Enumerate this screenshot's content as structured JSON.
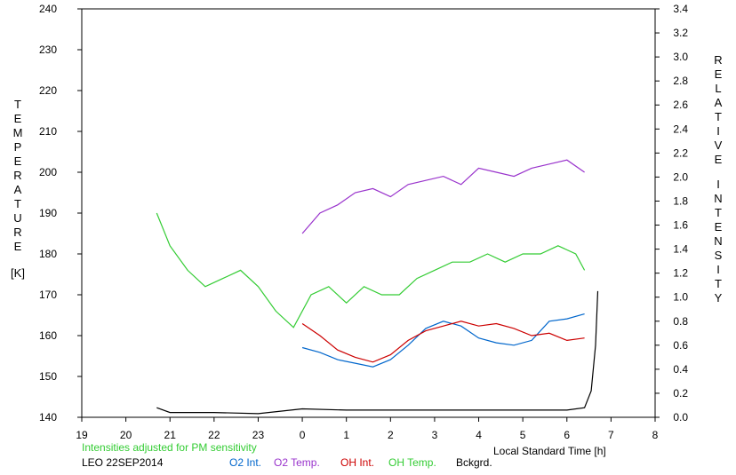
{
  "chart_data": {
    "type": "line",
    "left_axis": {
      "label_letters": [
        "T",
        "E",
        "M",
        "P",
        "E",
        "R",
        "A",
        "T",
        "U",
        "R",
        "E"
      ],
      "unit": "[K]",
      "ticks": [
        140,
        150,
        160,
        170,
        180,
        190,
        200,
        210,
        220,
        230,
        240
      ],
      "range": [
        140,
        240
      ]
    },
    "right_axis": {
      "word1": [
        "R",
        "E",
        "L",
        "A",
        "T",
        "I",
        "V",
        "E"
      ],
      "word2": [
        "I",
        "N",
        "T",
        "E",
        "N",
        "S",
        "I",
        "T",
        "Y"
      ],
      "ticks": [
        "0.0",
        "0.2",
        "0.4",
        "0.6",
        "0.8",
        "1.0",
        "1.2",
        "1.4",
        "1.6",
        "1.8",
        "2.0",
        "2.2",
        "2.4",
        "2.6",
        "2.8",
        "3.0",
        "3.2",
        "3.4"
      ],
      "range": [
        0,
        3.4
      ]
    },
    "x_axis": {
      "label": "Local Standard Time [h]",
      "tick_labels": [
        "19",
        "20",
        "21",
        "22",
        "23",
        "0",
        "1",
        "2",
        "3",
        "4",
        "5",
        "6",
        "7",
        "8"
      ],
      "range": [
        19,
        32
      ]
    },
    "note": "Intensities adjusted for PM sensitivity",
    "station": "LEO 22SEP2014",
    "series": [
      {
        "name": "O2 Int.",
        "axis": "right",
        "color": "#0066cc",
        "x": [
          24.0,
          24.4,
          24.8,
          25.2,
          25.6,
          26.0,
          26.4,
          26.8,
          27.2,
          27.6,
          28.0,
          28.4,
          28.8,
          29.2,
          29.6,
          30.0,
          30.4
        ],
        "y": [
          0.58,
          0.54,
          0.48,
          0.45,
          0.42,
          0.48,
          0.6,
          0.74,
          0.8,
          0.76,
          0.66,
          0.62,
          0.6,
          0.64,
          0.8,
          0.82,
          0.86
        ]
      },
      {
        "name": "O2 Temp.",
        "axis": "left",
        "color": "#9933cc",
        "x": [
          24.0,
          24.4,
          24.8,
          25.2,
          25.6,
          26.0,
          26.4,
          26.8,
          27.2,
          27.6,
          28.0,
          28.4,
          28.8,
          29.2,
          29.6,
          30.0,
          30.4
        ],
        "y": [
          185,
          190,
          192,
          195,
          196,
          194,
          197,
          198,
          199,
          197,
          201,
          200,
          199,
          201,
          202,
          203,
          200
        ]
      },
      {
        "name": "OH Int.",
        "axis": "right",
        "color": "#cc0000",
        "x": [
          24.0,
          24.4,
          24.8,
          25.2,
          25.6,
          26.0,
          26.4,
          26.8,
          27.2,
          27.6,
          28.0,
          28.4,
          28.8,
          29.2,
          29.6,
          30.0,
          30.4
        ],
        "y": [
          0.78,
          0.68,
          0.56,
          0.5,
          0.46,
          0.52,
          0.64,
          0.72,
          0.76,
          0.8,
          0.76,
          0.78,
          0.74,
          0.68,
          0.7,
          0.64,
          0.66
        ]
      },
      {
        "name": "OH Temp.",
        "axis": "left",
        "color": "#33cc33",
        "x": [
          20.7,
          21.0,
          21.4,
          21.8,
          22.2,
          22.6,
          23.0,
          23.4,
          23.8,
          24.2,
          24.6,
          25.0,
          25.4,
          25.8,
          26.2,
          26.6,
          27.0,
          27.4,
          27.8,
          28.2,
          28.6,
          29.0,
          29.4,
          29.8,
          30.2,
          30.4
        ],
        "y": [
          190,
          182,
          176,
          172,
          174,
          176,
          172,
          166,
          162,
          170,
          172,
          168,
          172,
          170,
          170,
          174,
          176,
          178,
          178,
          180,
          178,
          180,
          180,
          182,
          180,
          176
        ]
      },
      {
        "name": "Bckgrd.",
        "axis": "right",
        "color": "#000000",
        "x": [
          20.7,
          21.0,
          22.0,
          23.0,
          24.0,
          25.0,
          26.0,
          27.0,
          28.0,
          29.0,
          30.0,
          30.4,
          30.55,
          30.65,
          30.7
        ],
        "y": [
          0.08,
          0.04,
          0.04,
          0.03,
          0.07,
          0.06,
          0.06,
          0.06,
          0.06,
          0.06,
          0.06,
          0.08,
          0.22,
          0.6,
          1.05
        ]
      }
    ]
  }
}
